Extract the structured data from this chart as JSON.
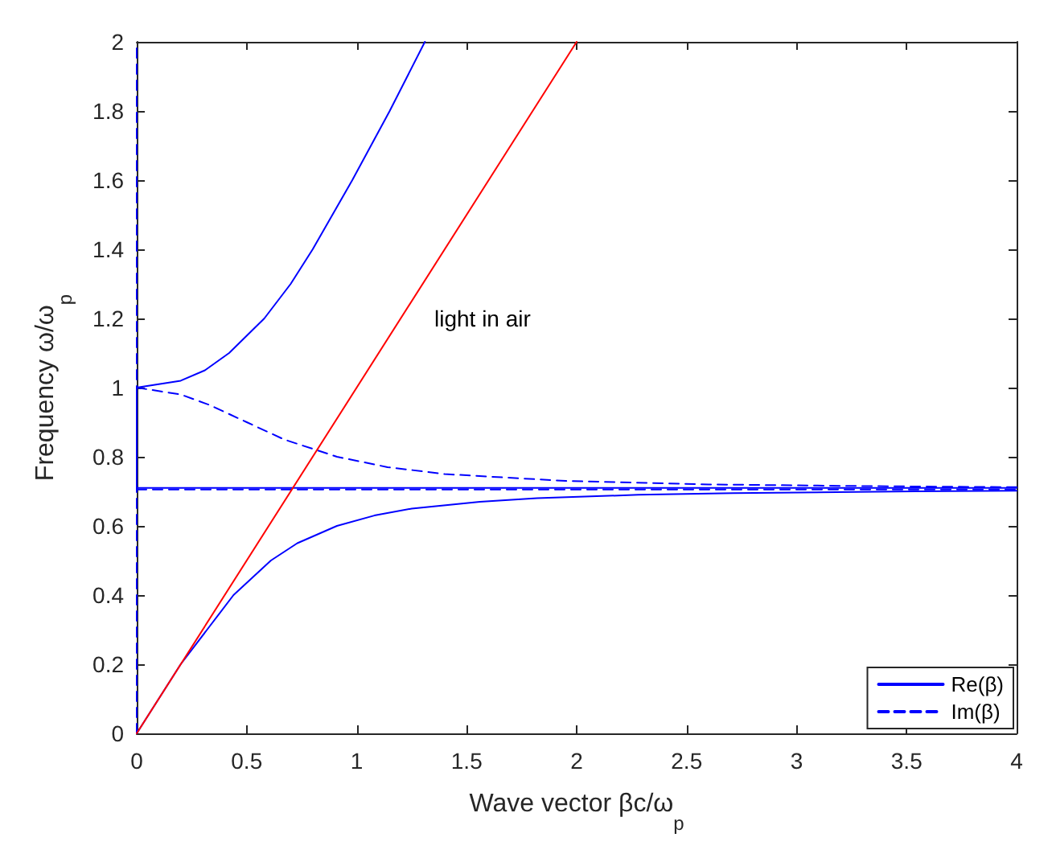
{
  "chart_data": {
    "type": "line",
    "xlabel": "Wave vector βc/ω$_{p}$",
    "ylabel": "Frequency ω/ω$_{p}$",
    "xlim": [
      0,
      4
    ],
    "xticks": [
      0,
      0.5,
      1,
      1.5,
      2,
      2.5,
      3,
      3.5,
      4
    ],
    "ylim": [
      0,
      2
    ],
    "yticks": [
      0,
      0.2,
      0.4,
      0.6,
      0.8,
      1,
      1.2,
      1.4,
      1.6,
      1.8,
      2
    ],
    "legend": "bottom right",
    "annotations": [
      "light in air"
    ],
    "series": [
      {
        "name": "Re(β)",
        "color": "#0000ff",
        "line_style": "solid",
        "x": [
          0,
          0.2,
          0.32,
          0.44,
          0.61,
          0.73,
          0.91,
          1.08,
          1.25,
          1.56,
          1.82,
          2.28,
          2.71,
          3.54,
          4
        ],
        "values": [
          0,
          0.2,
          0.3,
          0.4,
          0.5,
          0.55,
          0.6,
          0.63,
          0.65,
          0.67,
          0.68,
          0.69,
          0.695,
          0.7,
          0.702
        ]
      },
      {
        "color": "#0000ff",
        "line_style": "solid",
        "x": [
          0,
          0.2,
          0.31,
          0.42,
          0.58,
          0.7,
          0.8,
          0.98,
          1.15,
          1.31
        ],
        "values": [
          1,
          1.02,
          1.05,
          1.1,
          1.2,
          1.3,
          1.4,
          1.6,
          1.8,
          2
        ]
      },
      {
        "color": "#0000ff",
        "line_style": "solid",
        "x": [
          0,
          0
        ],
        "values": [
          0.71,
          1
        ]
      },
      {
        "color": "#0000ff",
        "line_style": "solid",
        "x": [
          0,
          4
        ],
        "values": [
          0.71,
          0.71
        ]
      },
      {
        "name": "Im(β)",
        "color": "#0000ff",
        "line_style": "dashed",
        "x": [
          0,
          0.2,
          0.33,
          0.5,
          0.67,
          0.91,
          1.14,
          1.4,
          1.95,
          2.6,
          3.34,
          4
        ],
        "values": [
          1,
          0.98,
          0.95,
          0.9,
          0.85,
          0.8,
          0.77,
          0.75,
          0.73,
          0.72,
          0.715,
          0.712
        ]
      },
      {
        "color": "#0000ff",
        "line_style": "dashed",
        "x": [
          0,
          0
        ],
        "values": [
          0,
          2
        ]
      },
      {
        "color": "#0000ff",
        "line_style": "dashed",
        "x": [
          0,
          4
        ],
        "values": [
          0.705,
          0.705
        ]
      },
      {
        "color": "#ff0000",
        "line_style": "solid",
        "x": [
          0,
          2
        ],
        "values": [
          0,
          2
        ]
      }
    ]
  }
}
